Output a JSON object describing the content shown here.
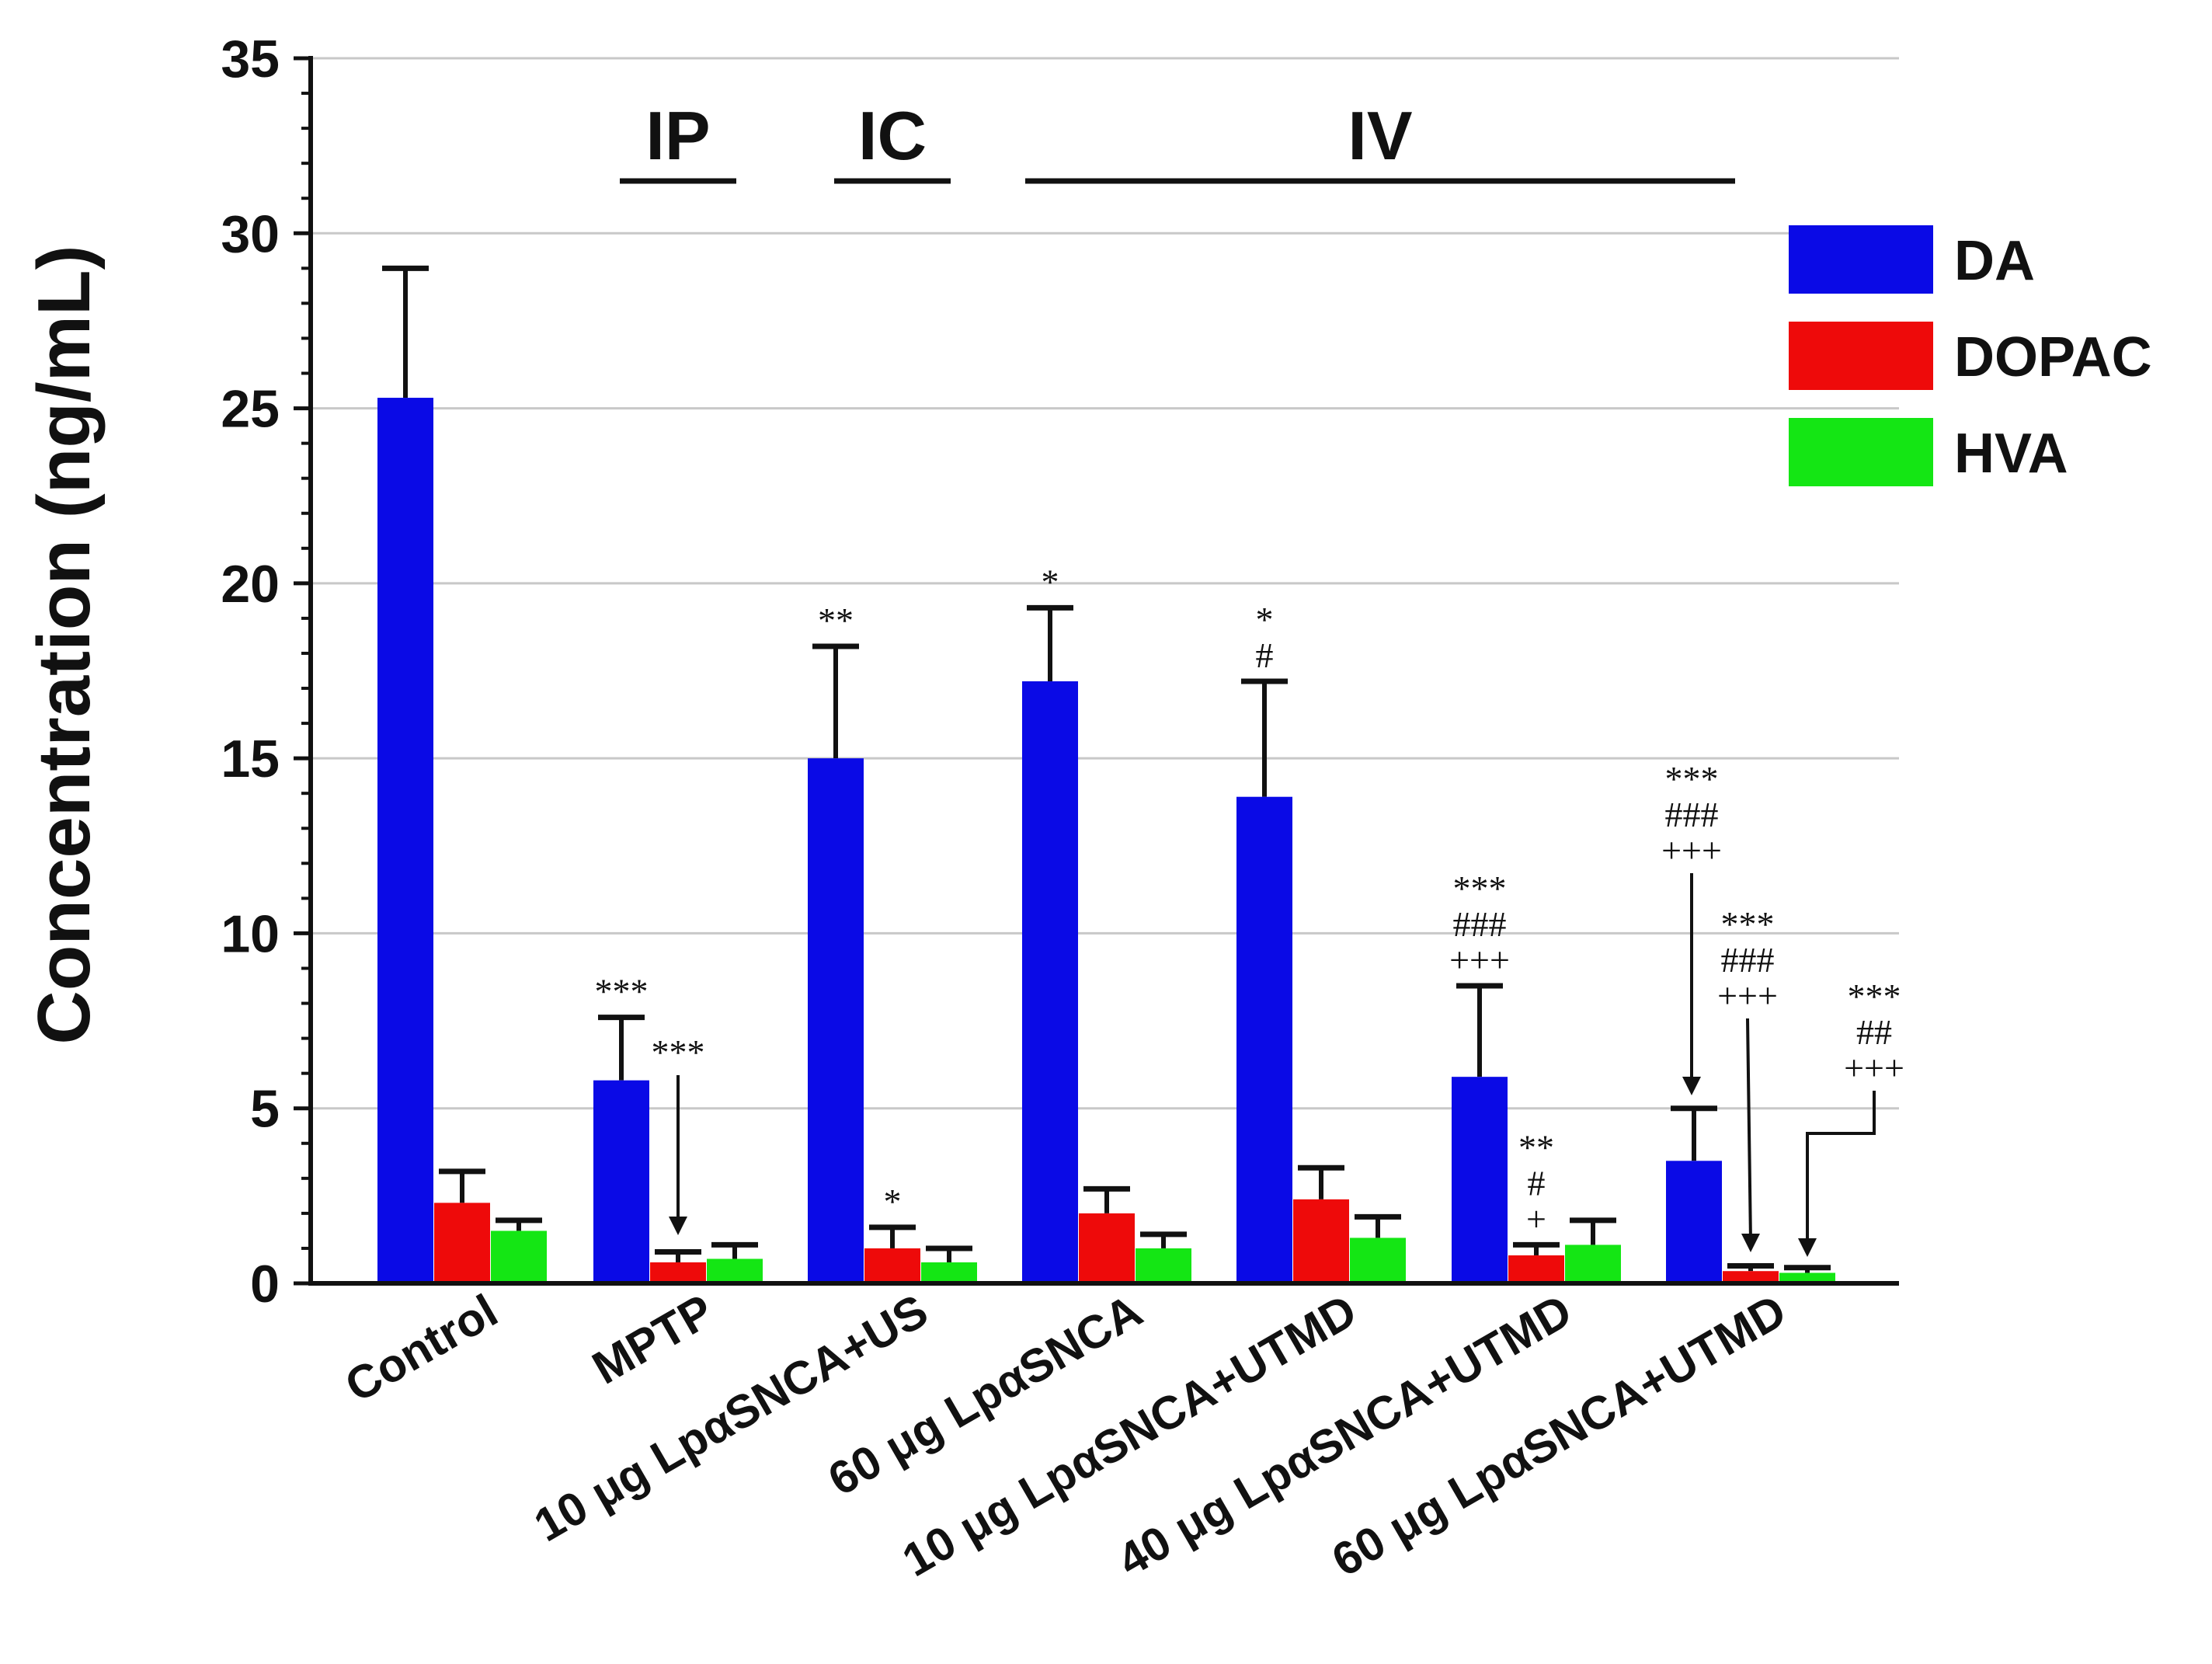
{
  "chart_data": {
    "type": "bar",
    "ylabel": "Concentration   (ng/mL)",
    "ylim": [
      0,
      35
    ],
    "yticks": [
      "0",
      "5",
      "10",
      "15",
      "20",
      "25",
      "30",
      "35"
    ],
    "ytick_values": [
      0,
      5,
      10,
      15,
      20,
      25,
      30,
      35
    ],
    "grid": true,
    "legend_position": "top-right",
    "categories": [
      "Control",
      "MPTP",
      "10 μg LpαSNCA+US",
      "60 μg LpαSNCA",
      "10 μg LpαSNCA+UTMD",
      "40 μg LpαSNCA+UTMD",
      "60 μg LpαSNCA+UTMD"
    ],
    "series": [
      {
        "name": "DA",
        "color": "#0a0ae6",
        "values": [
          25.3,
          5.8,
          15.0,
          17.2,
          13.9,
          5.9,
          3.5
        ],
        "errors": [
          3.7,
          1.8,
          3.2,
          2.1,
          3.3,
          2.6,
          1.5
        ]
      },
      {
        "name": "DOPAC",
        "color": "#ee0a0a",
        "values": [
          2.3,
          0.6,
          1.0,
          2.0,
          2.4,
          0.8,
          0.35
        ],
        "errors": [
          0.9,
          0.3,
          0.6,
          0.7,
          0.9,
          0.3,
          0.15
        ]
      },
      {
        "name": "HVA",
        "color": "#14e614",
        "values": [
          1.5,
          0.7,
          0.6,
          1.0,
          1.3,
          1.1,
          0.3
        ],
        "errors": [
          0.3,
          0.4,
          0.4,
          0.4,
          0.6,
          0.7,
          0.15
        ]
      }
    ],
    "route_groups": [
      {
        "label": "IP",
        "from": 1,
        "to": 1
      },
      {
        "label": "IC",
        "from": 2,
        "to": 2
      },
      {
        "label": "IV",
        "from": 3,
        "to": 6
      }
    ],
    "annotations": [
      {
        "category": 1,
        "series": 0,
        "lines": [
          "***"
        ]
      },
      {
        "category": 1,
        "series": 1,
        "lines": [
          "***"
        ]
      },
      {
        "category": 2,
        "series": 0,
        "lines": [
          "**"
        ]
      },
      {
        "category": 2,
        "series": 1,
        "lines": [
          "*"
        ]
      },
      {
        "category": 3,
        "series": 0,
        "lines": [
          "*"
        ]
      },
      {
        "category": 4,
        "series": 0,
        "lines": [
          "*",
          "#"
        ]
      },
      {
        "category": 5,
        "series": 0,
        "lines": [
          "***",
          "###",
          "+++"
        ]
      },
      {
        "category": 5,
        "series": 1,
        "lines": [
          "**",
          "#",
          "+"
        ]
      },
      {
        "category": 6,
        "series": 0,
        "lines": [
          "***",
          "###",
          "+++"
        ]
      },
      {
        "category": 6,
        "series": 1,
        "lines": [
          "***",
          "###",
          "+++"
        ]
      },
      {
        "category": 6,
        "series": 2,
        "lines": [
          "***",
          "##",
          "+++"
        ]
      }
    ]
  }
}
